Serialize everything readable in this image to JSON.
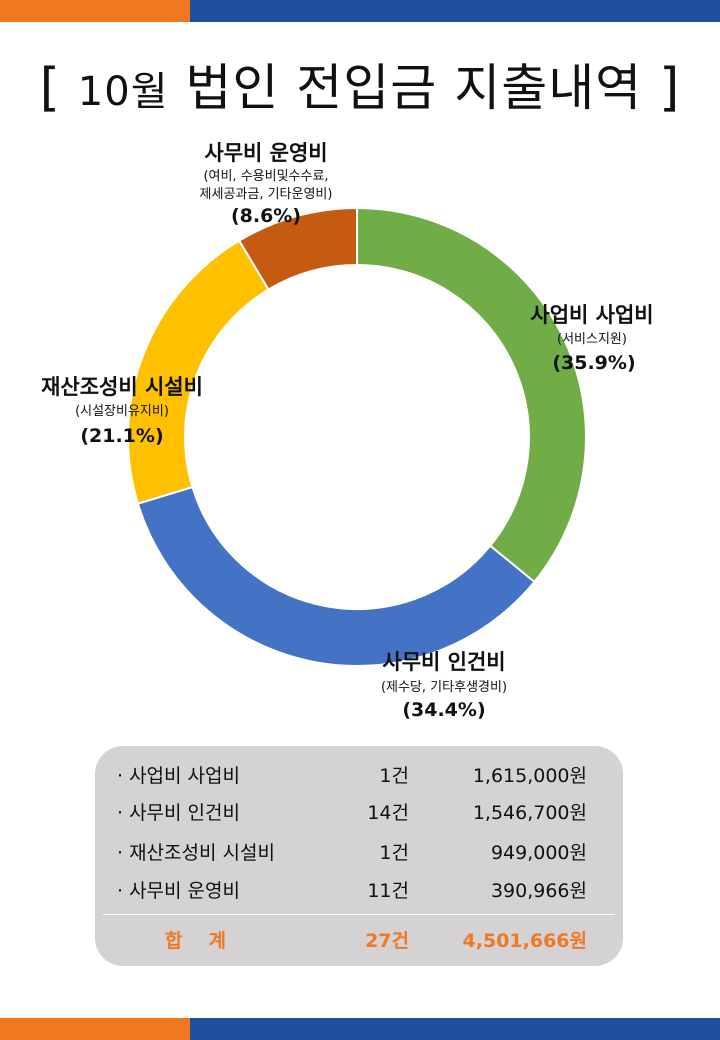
{
  "title": {
    "open": "[",
    "month": "10월",
    "text": "법인 전입금 지출내역",
    "close": "]"
  },
  "colors": {
    "orange": "#f07820",
    "blue": "#1f4e9e",
    "green": "#70ad47",
    "slice_blue": "#4472c4",
    "yellow": "#ffc000",
    "brown": "#c55a11",
    "panel": "#d4d2d2"
  },
  "chart_data": {
    "type": "pie",
    "donut": true,
    "slices": [
      {
        "name": "사업비 사업비",
        "detail": [
          "(서비스지원)"
        ],
        "value": 35.9,
        "pct_label": "(35.9%)",
        "color": "#70ad47"
      },
      {
        "name": "사무비 인건비",
        "detail": [
          "(제수당, 기타후생경비)"
        ],
        "value": 34.4,
        "pct_label": "(34.4%)",
        "color": "#4472c4"
      },
      {
        "name": "재산조성비 시설비",
        "detail": [
          "(시설장비유지비)"
        ],
        "value": 21.1,
        "pct_label": "(21.1%)",
        "color": "#ffc000"
      },
      {
        "name": "사무비 운영비",
        "detail": [
          "(여비, 수용비및수수료,",
          "제세공과금, 기타운영비)"
        ],
        "value": 8.6,
        "pct_label": "(8.6%)",
        "color": "#c55a11"
      }
    ]
  },
  "summary": {
    "rows": [
      {
        "name": "· 사업비 사업비",
        "count": "1건",
        "amount": "1,615,000원"
      },
      {
        "name": "· 사무비 인건비",
        "count": "14건",
        "amount": "1,546,700원"
      },
      {
        "name": "· 재산조성비 시설비",
        "count": "1건",
        "amount": "949,000원"
      },
      {
        "name": "· 사무비 운영비",
        "count": "11건",
        "amount": "390,966원"
      }
    ],
    "total": {
      "name": "합계",
      "count": "27건",
      "amount": "4,501,666원"
    }
  }
}
